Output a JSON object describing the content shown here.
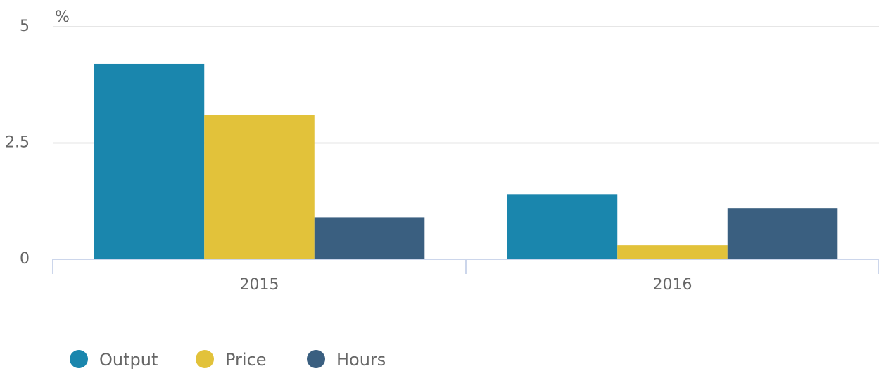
{
  "chart_data": {
    "type": "bar",
    "ylabel": "%",
    "categories": [
      "2015",
      "2016"
    ],
    "series": [
      {
        "name": "Output",
        "color": "#1a86ad",
        "values": [
          4.2,
          1.4
        ]
      },
      {
        "name": "Price",
        "color": "#e2c23a",
        "values": [
          3.1,
          0.3
        ]
      },
      {
        "name": "Hours",
        "color": "#3a5f80",
        "values": [
          0.9,
          1.1
        ]
      }
    ],
    "ylim": [
      0,
      5
    ],
    "yticks": [
      0,
      2.5,
      5
    ],
    "grid": true,
    "legend": "bottom-left"
  }
}
